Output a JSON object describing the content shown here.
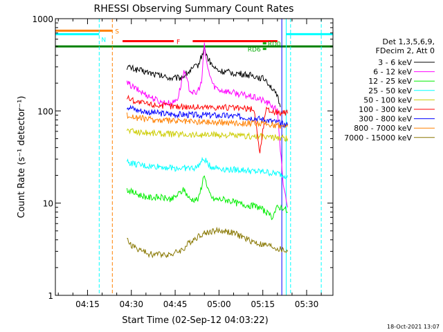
{
  "chart_data": {
    "type": "line",
    "title": "RHESSI Observing Summary Count Rates",
    "xlabel": "Start Time (02-Sep-12 04:03:22)",
    "ylabel": "Count Rate (s⁻¹ detector⁻¹)",
    "yscale": "log",
    "ylim": [
      1,
      1000
    ],
    "xlim_minutes": [
      4.0,
      99.0
    ],
    "x_ticks": [
      {
        "label": "04:15",
        "minute": 15
      },
      {
        "label": "04:30",
        "minute": 30
      },
      {
        "label": "04:45",
        "minute": 45
      },
      {
        "label": "05:00",
        "minute": 60
      },
      {
        "label": "05:15",
        "minute": 75
      },
      {
        "label": "05:30",
        "minute": 90
      }
    ],
    "y_ticks": [
      {
        "label": "1",
        "value": 1
      },
      {
        "label": "10",
        "value": 10
      },
      {
        "label": "100",
        "value": 100
      },
      {
        "label": "1000",
        "value": 1000
      }
    ],
    "legend": {
      "placement": "right",
      "header": [
        "Det 1,3,5,6,9,",
        "FDecim 2, Att 0"
      ],
      "entries": [
        {
          "label": "3 - 6 keV",
          "color": "#000000"
        },
        {
          "label": "6 - 12 keV",
          "color": "#ff00ff"
        },
        {
          "label": "12 - 25 keV",
          "color": "#00ee00"
        },
        {
          "label": "25 - 50 keV",
          "color": "#00ffff"
        },
        {
          "label": "50 - 100 keV",
          "color": "#cccc00"
        },
        {
          "label": "100 - 300 keV",
          "color": "#ff0000"
        },
        {
          "label": "300 - 800 keV",
          "color": "#0000ff"
        },
        {
          "label": "800 - 7000 keV",
          "color": "#ff8000"
        },
        {
          "label": "7000 - 15000 keV",
          "color": "#887700"
        }
      ]
    },
    "series": [
      {
        "name": "3 - 6 keV",
        "color": "#000000",
        "x": [
          28.5,
          32,
          36,
          40,
          44,
          47,
          50,
          53,
          55,
          56,
          58,
          60,
          64,
          68,
          72,
          76,
          78,
          80,
          81
        ],
        "y": [
          300,
          280,
          260,
          240,
          225,
          230,
          270,
          320,
          480,
          380,
          300,
          270,
          260,
          250,
          240,
          220,
          180,
          140,
          110
        ]
      },
      {
        "name": "6 - 12 keV",
        "color": "#ff00ff",
        "x": [
          28.5,
          32,
          36,
          40,
          44,
          46,
          48,
          50,
          52,
          54,
          55,
          56,
          58,
          60,
          64,
          68,
          72,
          75,
          78,
          80,
          82,
          83.5
        ],
        "y": [
          200,
          170,
          145,
          125,
          120,
          140,
          270,
          170,
          150,
          200,
          510,
          300,
          190,
          170,
          160,
          150,
          140,
          130,
          115,
          100,
          15,
          9
        ]
      },
      {
        "name": "12 - 25 keV",
        "color": "#00ee00",
        "x": [
          28.5,
          32,
          36,
          40,
          44,
          48,
          50,
          53,
          55,
          56,
          58,
          62,
          66,
          70,
          74,
          76,
          78,
          80,
          82,
          83.5
        ],
        "y": [
          14,
          12.5,
          11.5,
          11.5,
          11,
          14,
          11,
          11,
          21,
          14,
          11,
          11,
          10,
          9.5,
          9,
          8,
          7,
          9,
          9,
          8
        ]
      },
      {
        "name": "25 - 50 keV",
        "color": "#00ffff",
        "x": [
          28.5,
          32,
          36,
          40,
          44,
          48,
          52,
          55,
          57,
          60,
          64,
          68,
          72,
          76,
          78,
          80,
          82,
          83.5
        ],
        "y": [
          28,
          26,
          25,
          25,
          24,
          24,
          24,
          30,
          25,
          24,
          23,
          23,
          22,
          22,
          21,
          21,
          20,
          20
        ]
      },
      {
        "name": "50 - 100 keV",
        "color": "#cccc00",
        "x": [
          28.5,
          32,
          36,
          40,
          44,
          48,
          52,
          56,
          60,
          64,
          68,
          72,
          76,
          80,
          83.5
        ],
        "y": [
          62,
          59,
          58,
          57,
          56,
          56,
          55,
          55,
          55,
          54,
          53,
          53,
          52,
          51,
          50
        ]
      },
      {
        "name": "100 - 300 keV",
        "color": "#ff0000",
        "x": [
          28.5,
          32,
          36,
          40,
          44,
          48,
          52,
          56,
          60,
          64,
          68,
          72,
          74,
          76,
          78,
          80,
          83.5
        ],
        "y": [
          140,
          125,
          118,
          115,
          112,
          112,
          110,
          110,
          110,
          108,
          106,
          104,
          35,
          104,
          100,
          96,
          94
        ]
      },
      {
        "name": "300 - 800 keV",
        "color": "#0000ff",
        "x": [
          28.5,
          32,
          36,
          40,
          44,
          48,
          52,
          56,
          60,
          64,
          68,
          72,
          76,
          80,
          83.5
        ],
        "y": [
          112,
          102,
          97,
          94,
          92,
          91,
          90,
          90,
          89,
          88,
          86,
          84,
          80,
          75,
          70
        ]
      },
      {
        "name": "800 - 7000 keV",
        "color": "#ff8000",
        "x": [
          28.5,
          32,
          36,
          40,
          44,
          48,
          52,
          56,
          60,
          64,
          68,
          72,
          76,
          80,
          83.5
        ],
        "y": [
          90,
          84,
          81,
          79,
          78,
          77,
          76,
          76,
          75,
          75,
          74,
          73,
          72,
          70,
          68
        ]
      },
      {
        "name": "7000 - 15000 keV",
        "color": "#887700",
        "x": [
          28.5,
          30,
          32,
          34,
          36,
          40,
          44,
          48,
          50,
          52,
          54,
          56,
          58,
          60,
          62,
          64,
          66,
          68,
          70,
          72,
          74,
          76,
          78,
          80,
          83.5
        ],
        "y": [
          4,
          3.5,
          3.2,
          3.0,
          2.8,
          2.8,
          2.8,
          3.2,
          3.8,
          4.2,
          4.6,
          4.8,
          5.0,
          5.0,
          5.0,
          4.8,
          4.6,
          4.3,
          4.0,
          3.8,
          3.6,
          3.5,
          3.4,
          3.2,
          3.0
        ]
      }
    ],
    "flags": [
      {
        "label": "S",
        "color": "#ff8000",
        "start": 4.0,
        "end": 23.5,
        "value": 740
      },
      {
        "label": "N",
        "color": "#00ffff",
        "start": 4.0,
        "end": 19.0,
        "value": 680,
        "label_position": "end-below"
      },
      {
        "label": "N",
        "color": "#00ffff",
        "start": 83.0,
        "end": 99.0,
        "value": 680,
        "label_position": "none"
      },
      {
        "label": "F",
        "color": "#ff0000",
        "start": 27.0,
        "end": 44.5,
        "value": 570
      },
      {
        "label": "F",
        "color": "#ff0000",
        "start": 51.0,
        "end": 80.0,
        "value": 570,
        "label_position": "none"
      },
      {
        "label": "RD0",
        "color": "#00aa00",
        "start": 75.0,
        "end": 76.2,
        "value": 540,
        "label_position": "right"
      },
      {
        "label": "RD6",
        "color": "#00aa00",
        "start": 75.0,
        "end": 76.2,
        "value": 470,
        "label_position": "left"
      },
      {
        "label": "",
        "color": "#008000",
        "start": 4.0,
        "end": 99.0,
        "value": 500,
        "thick": true
      }
    ],
    "vertical_lines": [
      {
        "minute": 4.0,
        "color": "#00ffff",
        "style": "solid"
      },
      {
        "minute": 19.0,
        "color": "#00ffff",
        "style": "dashed"
      },
      {
        "minute": 23.5,
        "color": "#ff8000",
        "style": "dashed"
      },
      {
        "minute": 81.5,
        "color": "#0000ff",
        "style": "solid"
      },
      {
        "minute": 83.0,
        "color": "#00ffff",
        "style": "solid"
      },
      {
        "minute": 84.5,
        "color": "#00ffff",
        "style": "dashed"
      },
      {
        "minute": 95.0,
        "color": "#00ffff",
        "style": "dashed"
      }
    ],
    "footer_date": "18-Oct-2021 13:07",
    "grid": false
  }
}
